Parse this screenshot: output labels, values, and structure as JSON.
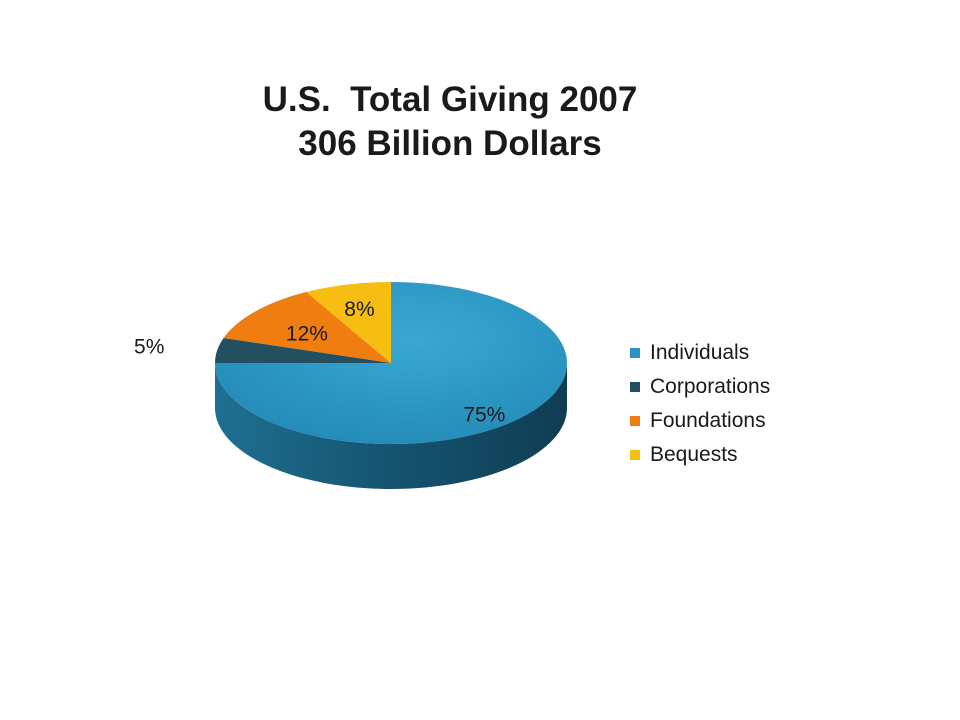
{
  "chart_data": {
    "type": "pie",
    "title_lines": [
      "U.S.  Total Giving 2007",
      "306 Billion Dollars"
    ],
    "slices": [
      {
        "name": "Individuals",
        "value": 75,
        "label": "75%",
        "color": "#2a92bd"
      },
      {
        "name": "Corporations",
        "value": 5,
        "label": "5%",
        "color": "#244f60"
      },
      {
        "name": "Foundations",
        "value": 12,
        "label": "12%",
        "color": "#f07d10"
      },
      {
        "name": "Bequests",
        "value": 8,
        "label": "8%",
        "color": "#f6bd13"
      }
    ],
    "legend_position": "right",
    "style": "3d"
  }
}
